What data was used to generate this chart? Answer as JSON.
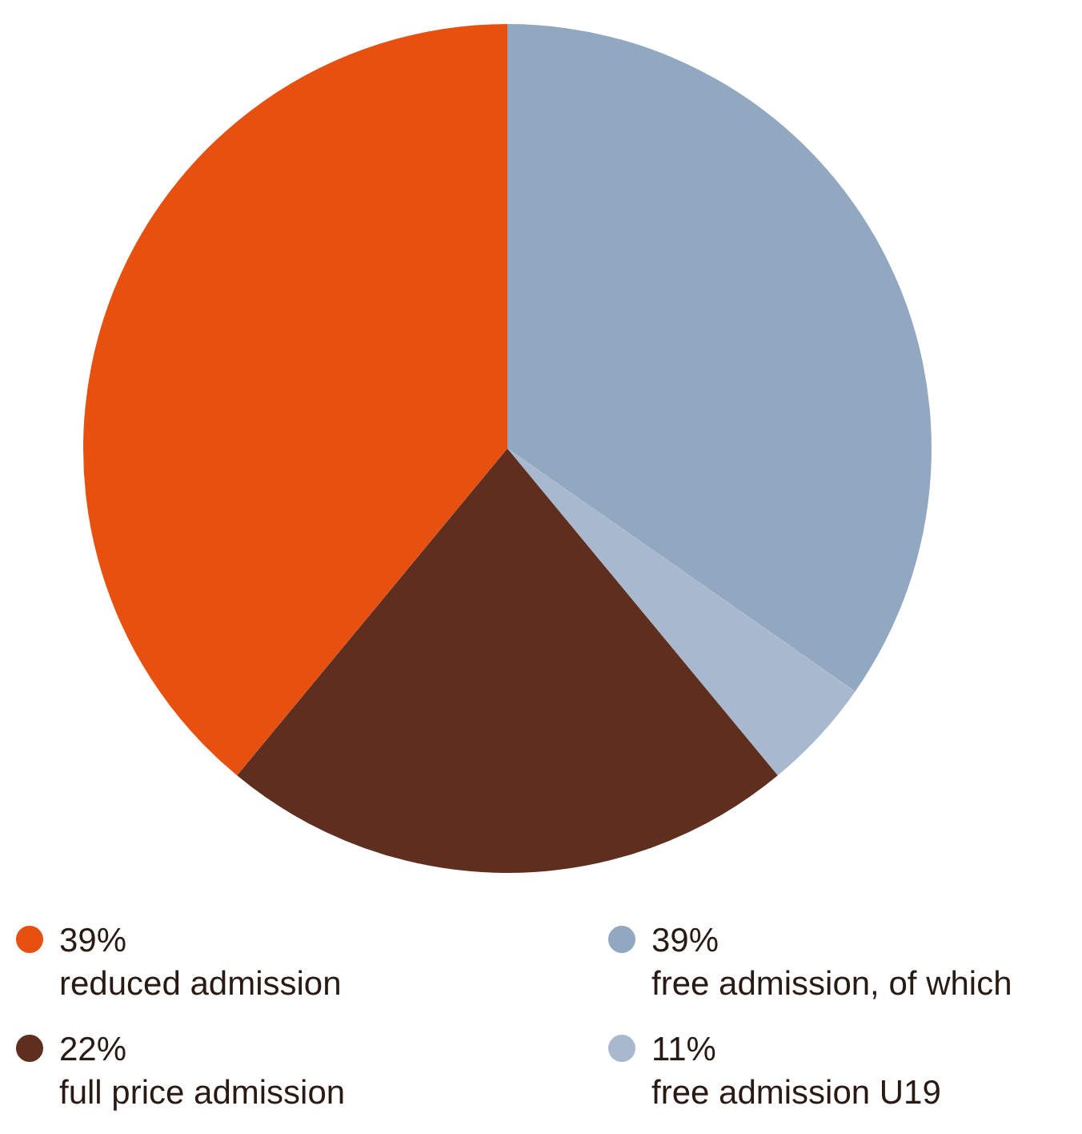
{
  "chart_data": {
    "type": "pie",
    "categories": [
      "reduced admission",
      "free admission, of which",
      "free admission U19",
      "full price admission"
    ],
    "values": [
      39,
      34.7,
      4.3,
      22
    ],
    "annotations": [
      "39%",
      "39%",
      "11%",
      "22%"
    ],
    "colors": [
      "#e8500f",
      "#91a8c0",
      "#a8b9cf",
      "#5e2f1e"
    ],
    "legend": "bottom"
  }
}
